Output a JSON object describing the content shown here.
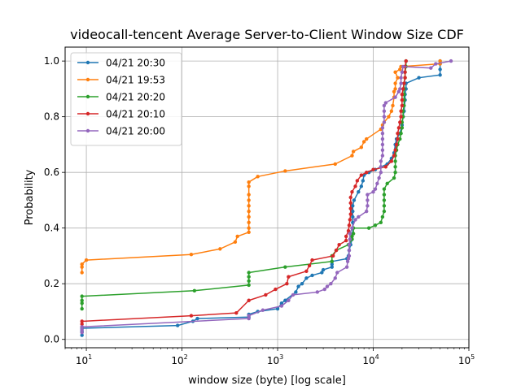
{
  "chart_data": {
    "type": "line",
    "title": "videocall-tencent Average Server-to-Client Window Size CDF",
    "xlabel": "window size (byte) [log scale]",
    "ylabel": "Probability",
    "xscale": "log",
    "xlim": [
      6,
      100000
    ],
    "ylim": [
      -0.03,
      1.05
    ],
    "xticks": [
      {
        "value": 10,
        "base": "10",
        "exp": "1"
      },
      {
        "value": 100,
        "base": "10",
        "exp": "2"
      },
      {
        "value": 1000,
        "base": "10",
        "exp": "3"
      },
      {
        "value": 10000,
        "base": "10",
        "exp": "4"
      },
      {
        "value": 100000,
        "base": "10",
        "exp": "5"
      }
    ],
    "yticks": [
      {
        "value": 0.0,
        "label": "0.0"
      },
      {
        "value": 0.2,
        "label": "0.2"
      },
      {
        "value": 0.4,
        "label": "0.4"
      },
      {
        "value": 0.6,
        "label": "0.6"
      },
      {
        "value": 0.8,
        "label": "0.8"
      },
      {
        "value": 1.0,
        "label": "1.0"
      }
    ],
    "grid": true,
    "legend_position": "upper-left",
    "series": [
      {
        "name": "04/21 20:30",
        "color": "#1f77b4",
        "points": [
          [
            9,
            0.015
          ],
          [
            9,
            0.025
          ],
          [
            9,
            0.03
          ],
          [
            9,
            0.04
          ],
          [
            90,
            0.05
          ],
          [
            130,
            0.065
          ],
          [
            145,
            0.075
          ],
          [
            500,
            0.08
          ],
          [
            500,
            0.09
          ],
          [
            620,
            0.1
          ],
          [
            1000,
            0.11
          ],
          [
            1100,
            0.13
          ],
          [
            1200,
            0.14
          ],
          [
            1550,
            0.17
          ],
          [
            1650,
            0.19
          ],
          [
            1800,
            0.2
          ],
          [
            2000,
            0.22
          ],
          [
            2300,
            0.23
          ],
          [
            2900,
            0.24
          ],
          [
            3000,
            0.25
          ],
          [
            3700,
            0.26
          ],
          [
            3700,
            0.27
          ],
          [
            3700,
            0.28
          ],
          [
            5300,
            0.29
          ],
          [
            5500,
            0.3
          ],
          [
            5600,
            0.32
          ],
          [
            5800,
            0.34
          ],
          [
            6000,
            0.36
          ],
          [
            6100,
            0.38
          ],
          [
            6100,
            0.4
          ],
          [
            6100,
            0.42
          ],
          [
            6100,
            0.44
          ],
          [
            6100,
            0.46
          ],
          [
            6100,
            0.48
          ],
          [
            6300,
            0.5
          ],
          [
            7000,
            0.53
          ],
          [
            7500,
            0.55
          ],
          [
            7800,
            0.57
          ],
          [
            8000,
            0.59
          ],
          [
            9000,
            0.6
          ],
          [
            10500,
            0.61
          ],
          [
            14000,
            0.63
          ],
          [
            15500,
            0.65
          ],
          [
            16500,
            0.67
          ],
          [
            17000,
            0.7
          ],
          [
            17500,
            0.72
          ],
          [
            19000,
            0.74
          ],
          [
            20000,
            0.77
          ],
          [
            20500,
            0.8
          ],
          [
            21000,
            0.82
          ],
          [
            21500,
            0.86
          ],
          [
            21500,
            0.88
          ],
          [
            22000,
            0.9
          ],
          [
            22000,
            0.92
          ],
          [
            30000,
            0.94
          ],
          [
            50000,
            0.95
          ],
          [
            50000,
            0.97
          ],
          [
            50000,
            0.99
          ],
          [
            50000,
            1.0
          ]
        ]
      },
      {
        "name": "04/21 19:53",
        "color": "#ff7f0e",
        "points": [
          [
            9,
            0.24
          ],
          [
            9,
            0.26
          ],
          [
            9,
            0.27
          ],
          [
            10,
            0.285
          ],
          [
            125,
            0.305
          ],
          [
            250,
            0.325
          ],
          [
            360,
            0.35
          ],
          [
            380,
            0.37
          ],
          [
            500,
            0.385
          ],
          [
            500,
            0.4
          ],
          [
            500,
            0.42
          ],
          [
            500,
            0.44
          ],
          [
            500,
            0.46
          ],
          [
            500,
            0.48
          ],
          [
            500,
            0.5
          ],
          [
            500,
            0.52
          ],
          [
            500,
            0.55
          ],
          [
            500,
            0.565
          ],
          [
            620,
            0.585
          ],
          [
            1200,
            0.605
          ],
          [
            4000,
            0.63
          ],
          [
            6000,
            0.66
          ],
          [
            6200,
            0.675
          ],
          [
            7500,
            0.69
          ],
          [
            8000,
            0.71
          ],
          [
            8500,
            0.72
          ],
          [
            12000,
            0.755
          ],
          [
            12500,
            0.77
          ],
          [
            13000,
            0.78
          ],
          [
            14500,
            0.8
          ],
          [
            15500,
            0.82
          ],
          [
            16000,
            0.84
          ],
          [
            16500,
            0.87
          ],
          [
            16500,
            0.89
          ],
          [
            17000,
            0.9
          ],
          [
            17000,
            0.92
          ],
          [
            18000,
            0.94
          ],
          [
            17000,
            0.96
          ],
          [
            19000,
            0.97
          ],
          [
            19500,
            0.98
          ],
          [
            50000,
            0.99
          ],
          [
            50000,
            1.0
          ]
        ]
      },
      {
        "name": "04/21 20:20",
        "color": "#2ca02c",
        "points": [
          [
            9,
            0.11
          ],
          [
            9,
            0.13
          ],
          [
            9,
            0.14
          ],
          [
            9,
            0.155
          ],
          [
            135,
            0.175
          ],
          [
            500,
            0.195
          ],
          [
            500,
            0.21
          ],
          [
            500,
            0.225
          ],
          [
            500,
            0.24
          ],
          [
            1200,
            0.26
          ],
          [
            3700,
            0.28
          ],
          [
            3700,
            0.3
          ],
          [
            4100,
            0.32
          ],
          [
            5500,
            0.34
          ],
          [
            6000,
            0.36
          ],
          [
            6000,
            0.37
          ],
          [
            6200,
            0.38
          ],
          [
            6200,
            0.4
          ],
          [
            9000,
            0.4
          ],
          [
            10500,
            0.41
          ],
          [
            12000,
            0.42
          ],
          [
            12500,
            0.44
          ],
          [
            13000,
            0.46
          ],
          [
            13000,
            0.48
          ],
          [
            13000,
            0.5
          ],
          [
            13000,
            0.52
          ],
          [
            13000,
            0.54
          ],
          [
            14000,
            0.56
          ],
          [
            16500,
            0.58
          ],
          [
            17000,
            0.6
          ],
          [
            17000,
            0.62
          ],
          [
            17000,
            0.64
          ],
          [
            17000,
            0.66
          ],
          [
            17500,
            0.68
          ],
          [
            18000,
            0.7
          ],
          [
            19000,
            0.72
          ],
          [
            19500,
            0.74
          ],
          [
            20000,
            0.76
          ],
          [
            20000,
            0.78
          ],
          [
            20500,
            0.8
          ],
          [
            20500,
            0.82
          ],
          [
            21000,
            0.84
          ],
          [
            21000,
            0.86
          ],
          [
            21000,
            0.88
          ],
          [
            21000,
            0.9
          ],
          [
            21000,
            0.92
          ],
          [
            21500,
            0.94
          ],
          [
            21500,
            0.96
          ],
          [
            22000,
            0.98
          ],
          [
            22000,
            1.0
          ]
        ]
      },
      {
        "name": "04/21 20:10",
        "color": "#d62728",
        "points": [
          [
            9,
            0.045
          ],
          [
            9,
            0.055
          ],
          [
            9,
            0.065
          ],
          [
            125,
            0.085
          ],
          [
            370,
            0.095
          ],
          [
            500,
            0.14
          ],
          [
            750,
            0.16
          ],
          [
            950,
            0.18
          ],
          [
            1250,
            0.2
          ],
          [
            1300,
            0.225
          ],
          [
            2000,
            0.245
          ],
          [
            2150,
            0.265
          ],
          [
            2300,
            0.285
          ],
          [
            3800,
            0.3
          ],
          [
            4100,
            0.32
          ],
          [
            4400,
            0.34
          ],
          [
            5200,
            0.355
          ],
          [
            5200,
            0.37
          ],
          [
            5500,
            0.39
          ],
          [
            5600,
            0.41
          ],
          [
            5700,
            0.43
          ],
          [
            5800,
            0.45
          ],
          [
            5800,
            0.47
          ],
          [
            5800,
            0.49
          ],
          [
            5800,
            0.51
          ],
          [
            6000,
            0.53
          ],
          [
            6500,
            0.55
          ],
          [
            6800,
            0.57
          ],
          [
            7500,
            0.59
          ],
          [
            8500,
            0.6
          ],
          [
            10000,
            0.61
          ],
          [
            13500,
            0.62
          ],
          [
            15500,
            0.64
          ],
          [
            16500,
            0.66
          ],
          [
            17000,
            0.68
          ],
          [
            17500,
            0.7
          ],
          [
            18000,
            0.72
          ],
          [
            18000,
            0.74
          ],
          [
            18500,
            0.76
          ],
          [
            19000,
            0.78
          ],
          [
            19500,
            0.8
          ],
          [
            19500,
            0.82
          ],
          [
            20000,
            0.84
          ],
          [
            20000,
            0.86
          ],
          [
            20000,
            0.88
          ],
          [
            20500,
            0.9
          ],
          [
            21000,
            0.92
          ],
          [
            21500,
            0.94
          ],
          [
            21500,
            0.96
          ],
          [
            21500,
            0.98
          ],
          [
            22000,
            1.0
          ]
        ]
      },
      {
        "name": "04/21 20:00",
        "color": "#9467bd",
        "points": [
          [
            9,
            0.025
          ],
          [
            9,
            0.035
          ],
          [
            9,
            0.045
          ],
          [
            500,
            0.075
          ],
          [
            500,
            0.085
          ],
          [
            700,
            0.105
          ],
          [
            1100,
            0.12
          ],
          [
            1300,
            0.14
          ],
          [
            1450,
            0.16
          ],
          [
            2600,
            0.17
          ],
          [
            3100,
            0.18
          ],
          [
            3300,
            0.19
          ],
          [
            3600,
            0.2
          ],
          [
            4000,
            0.22
          ],
          [
            4200,
            0.24
          ],
          [
            5300,
            0.26
          ],
          [
            5400,
            0.28
          ],
          [
            5500,
            0.29
          ],
          [
            5600,
            0.3
          ],
          [
            5600,
            0.32
          ],
          [
            5600,
            0.34
          ],
          [
            5700,
            0.36
          ],
          [
            5700,
            0.38
          ],
          [
            6000,
            0.4
          ],
          [
            6500,
            0.43
          ],
          [
            7000,
            0.44
          ],
          [
            8500,
            0.46
          ],
          [
            8700,
            0.48
          ],
          [
            8700,
            0.5
          ],
          [
            8700,
            0.52
          ],
          [
            10000,
            0.53
          ],
          [
            10500,
            0.54
          ],
          [
            11000,
            0.56
          ],
          [
            11500,
            0.58
          ],
          [
            12000,
            0.6
          ],
          [
            12000,
            0.62
          ],
          [
            12000,
            0.64
          ],
          [
            12500,
            0.66
          ],
          [
            12500,
            0.68
          ],
          [
            12500,
            0.7
          ],
          [
            12500,
            0.72
          ],
          [
            12500,
            0.74
          ],
          [
            12500,
            0.76
          ],
          [
            13000,
            0.78
          ],
          [
            13000,
            0.8
          ],
          [
            13000,
            0.82
          ],
          [
            13000,
            0.84
          ],
          [
            13500,
            0.85
          ],
          [
            17000,
            0.87
          ],
          [
            18500,
            0.89
          ],
          [
            19000,
            0.9
          ],
          [
            19500,
            0.92
          ],
          [
            19500,
            0.94
          ],
          [
            20000,
            0.96
          ],
          [
            20500,
            0.98
          ],
          [
            40000,
            0.975
          ],
          [
            45000,
            0.99
          ],
          [
            65000,
            1.0
          ]
        ]
      }
    ]
  }
}
